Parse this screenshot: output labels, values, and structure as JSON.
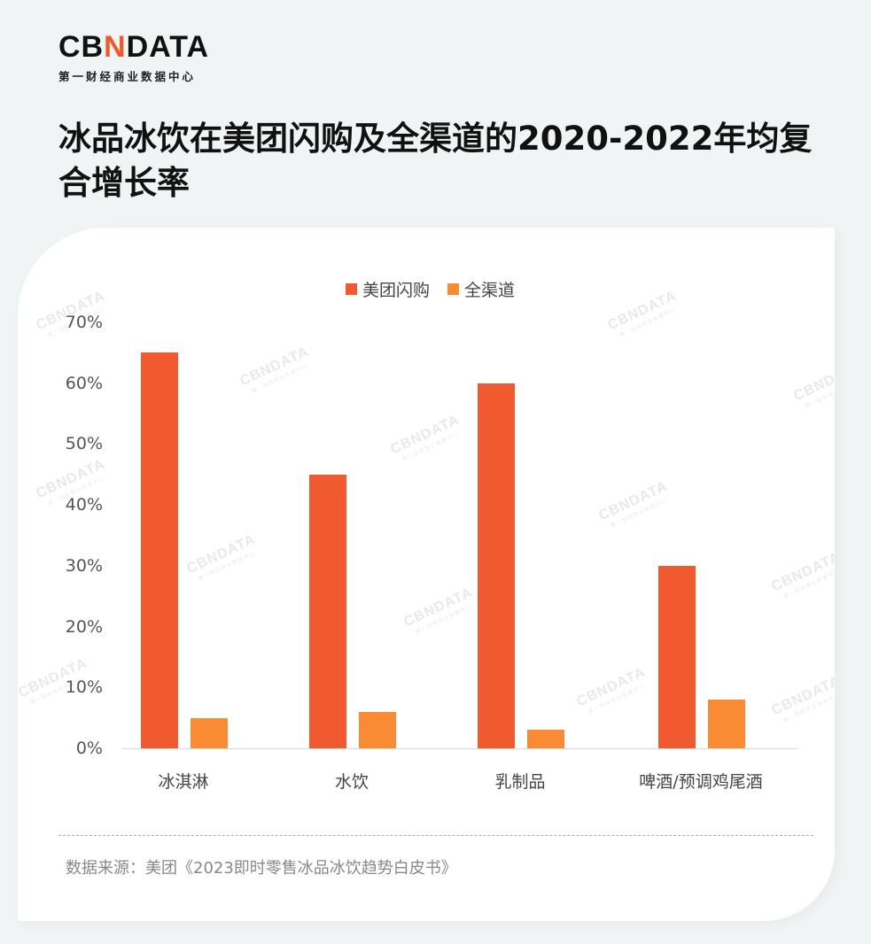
{
  "logo": {
    "mark_left": "CB",
    "mark_accent": "N",
    "mark_right": "DATA",
    "subtitle": "第一财经商业数据中心"
  },
  "title": "冰品冰饮在美团闪购及全渠道的2020-2022年均复合增长率",
  "watermark": {
    "main": "CBNDATA",
    "sub": "第一财经商业数据中心"
  },
  "colors": {
    "meituan": "#f05a2e",
    "all_channel": "#f88b33",
    "background": "#f1f4f5",
    "card": "#ffffff"
  },
  "legend": [
    {
      "label": "美团闪购",
      "color": "#f05a2e"
    },
    {
      "label": "全渠道",
      "color": "#f88b33"
    }
  ],
  "y_ticks": [
    "70%",
    "60%",
    "50%",
    "40%",
    "30%",
    "20%",
    "10%",
    "0%"
  ],
  "source": "数据来源：美团《2023即时零售冰品冰饮趋势白皮书》",
  "chart_data": {
    "type": "bar",
    "title": "冰品冰饮在美团闪购及全渠道的2020-2022年均复合增长率",
    "categories": [
      "冰淇淋",
      "水饮",
      "乳制品",
      "啤酒/预调鸡尾酒"
    ],
    "series": [
      {
        "name": "美团闪购",
        "values": [
          65,
          45,
          60,
          30
        ],
        "color": "#f05a2e"
      },
      {
        "name": "全渠道",
        "values": [
          5,
          6,
          3,
          8
        ],
        "color": "#f88b33"
      }
    ],
    "xlabel": "",
    "ylabel": "",
    "unit": "%",
    "ylim": [
      0,
      70
    ],
    "yticks": [
      0,
      10,
      20,
      30,
      40,
      50,
      60,
      70
    ],
    "grid": false,
    "legend_position": "top"
  }
}
